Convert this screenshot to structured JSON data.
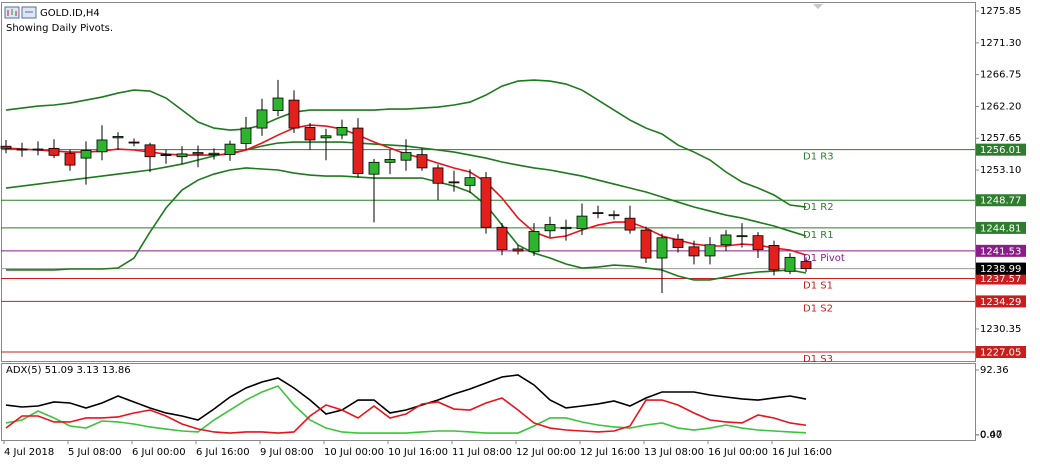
{
  "chart_data": [
    {
      "type": "candlestick",
      "title": "GOLD.ID,H4",
      "subtitle": "Showing Daily Pivots.",
      "categories": [
        "4 Jul 2018",
        null,
        null,
        null,
        "5 Jul 08:00",
        null,
        null,
        null,
        "6 Jul 00:00",
        null,
        null,
        null,
        "6 Jul 16:00",
        null,
        null,
        null,
        "9 Jul 08:00",
        null,
        null,
        null,
        "10 Jul 00:00",
        null,
        null,
        null,
        "10 Jul 16:00",
        null,
        null,
        null,
        "11 Jul 08:00",
        null,
        null,
        null,
        "12 Jul 00:00",
        null,
        null,
        null,
        "12 Jul 16:00",
        null,
        null,
        null,
        "13 Jul 08:00",
        null,
        null,
        null,
        "16 Jul 00:00",
        null,
        null,
        null,
        "16 Jul 16:00",
        null,
        null
      ],
      "open": [
        1256.5,
        1256.1,
        1256.0,
        1256.2,
        1255.5,
        1254.8,
        1255.7,
        1257.7,
        1257.1,
        1256.7,
        1255.3,
        1255.0,
        1255.4,
        1255.3,
        1255.3,
        1256.9,
        1259.1,
        1261.6,
        1263.1,
        1259.2,
        1257.7,
        1258.1,
        1259.1,
        1252.5,
        1254.2,
        1254.5,
        1255.3,
        1253.4,
        1251.4,
        1250.9,
        1252.0,
        1244.9,
        1241.8,
        1241.4,
        1244.4,
        1244.7,
        1244.7,
        1246.9,
        1246.6,
        1246.2,
        1244.5,
        1240.5,
        1243.2,
        1242.1,
        1240.8,
        1242.4,
        1243.6,
        1243.7,
        1242.3,
        1238.6,
        1240.0
      ],
      "high": [
        1257.4,
        1257.0,
        1257.2,
        1257.5,
        1256.0,
        1257.2,
        1259.5,
        1258.5,
        1257.6,
        1257.0,
        1256.0,
        1256.5,
        1256.6,
        1256.2,
        1257.3,
        1260.7,
        1263.3,
        1266.0,
        1264.5,
        1259.8,
        1259.0,
        1260.3,
        1260.5,
        1254.7,
        1256.0,
        1257.5,
        1256.2,
        1253.9,
        1253.0,
        1253.2,
        1252.8,
        1245.5,
        1242.4,
        1245.5,
        1246.4,
        1246.0,
        1248.3,
        1248.0,
        1247.3,
        1248.0,
        1245.0,
        1244.0,
        1243.9,
        1243.0,
        1243.5,
        1244.5,
        1245.5,
        1244.2,
        1243.0,
        1241.2,
        1240.6
      ],
      "low": [
        1255.5,
        1255.0,
        1255.2,
        1254.8,
        1253.0,
        1251.0,
        1254.5,
        1256.0,
        1256.5,
        1252.8,
        1254.0,
        1254.0,
        1253.5,
        1254.6,
        1254.4,
        1256.0,
        1258.0,
        1260.8,
        1258.4,
        1256.0,
        1254.5,
        1257.5,
        1252.0,
        1245.6,
        1252.5,
        1253.0,
        1253.0,
        1248.8,
        1250.0,
        1249.8,
        1244.0,
        1240.9,
        1241.0,
        1240.8,
        1243.5,
        1243.0,
        1243.8,
        1246.2,
        1246.0,
        1244.0,
        1239.8,
        1235.5,
        1241.3,
        1239.6,
        1239.6,
        1241.5,
        1242.0,
        1240.5,
        1238.0,
        1238.2,
        1238.5
      ],
      "close": [
        1256.2,
        1256.0,
        1256.1,
        1255.2,
        1253.8,
        1255.9,
        1257.4,
        1257.9,
        1257.0,
        1255.0,
        1255.2,
        1255.4,
        1255.6,
        1255.5,
        1256.8,
        1259.1,
        1261.7,
        1263.4,
        1259.1,
        1257.4,
        1258.0,
        1259.2,
        1252.6,
        1254.2,
        1254.6,
        1255.6,
        1253.4,
        1251.2,
        1251.3,
        1252.0,
        1244.9,
        1241.7,
        1241.5,
        1244.3,
        1245.3,
        1244.9,
        1246.5,
        1247.0,
        1246.7,
        1244.5,
        1240.5,
        1243.4,
        1242.0,
        1240.8,
        1242.4,
        1243.8,
        1243.7,
        1241.7,
        1238.8,
        1240.6,
        1238.99
      ],
      "up_color": "#2db52d",
      "down_color": "#e3201c",
      "series": [
        {
          "color": "#1f7a1f",
          "values": [
            1261.68,
            1261.97,
            1262.25,
            1262.4,
            1262.68,
            1263.11,
            1263.54,
            1264.11,
            1264.54,
            1264.4,
            1263.4,
            1261.68,
            1259.96,
            1259.1,
            1258.82,
            1258.96,
            1259.53,
            1260.53,
            1261.39,
            1261.68,
            1261.68,
            1261.68,
            1261.68,
            1261.68,
            1261.82,
            1261.82,
            1261.97,
            1262.11,
            1262.4,
            1262.82,
            1263.83,
            1265.11,
            1265.83,
            1265.97,
            1265.83,
            1265.4,
            1264.54,
            1263.11,
            1261.68,
            1260.25,
            1259.1,
            1258.25,
            1256.67,
            1255.67,
            1254.53,
            1252.81,
            1251.38,
            1250.52,
            1249.52,
            1248.09,
            1247.8
          ]
        },
        {
          "color": "#1f7a1f",
          "values": [
            1250.52,
            1250.8,
            1251.09,
            1251.38,
            1251.66,
            1251.95,
            1252.23,
            1252.52,
            1252.81,
            1253.1,
            1253.52,
            1253.95,
            1254.53,
            1255.1,
            1255.53,
            1255.96,
            1256.53,
            1256.96,
            1257.1,
            1257.1,
            1257.1,
            1257.1,
            1256.96,
            1256.81,
            1256.67,
            1256.53,
            1256.24,
            1255.96,
            1255.67,
            1255.24,
            1254.81,
            1254.24,
            1253.81,
            1253.39,
            1253.1,
            1252.66,
            1252.23,
            1251.66,
            1251.09,
            1250.52,
            1249.95,
            1249.23,
            1248.51,
            1247.8,
            1247.22,
            1246.65,
            1246.22,
            1245.65,
            1245.08,
            1244.36,
            1243.65
          ]
        },
        {
          "color": "#1f7a1f",
          "values": [
            1238.79,
            1238.79,
            1238.79,
            1238.79,
            1238.93,
            1238.93,
            1238.93,
            1239.07,
            1240.5,
            1244.22,
            1247.66,
            1250.23,
            1251.66,
            1252.52,
            1253.1,
            1253.39,
            1253.24,
            1253.1,
            1252.66,
            1252.38,
            1252.23,
            1252.23,
            1252.09,
            1251.95,
            1251.95,
            1251.95,
            1251.95,
            1251.38,
            1250.8,
            1249.95,
            1248.09,
            1245.22,
            1242.36,
            1241.21,
            1240.5,
            1239.64,
            1239.07,
            1239.21,
            1239.5,
            1239.35,
            1239.07,
            1238.79,
            1237.93,
            1237.36,
            1237.36,
            1237.79,
            1238.22,
            1238.5,
            1238.64,
            1238.79,
            1238.36
          ]
        },
        {
          "color": "#e8141c",
          "values": [
            1256.24,
            1256.1,
            1255.96,
            1255.81,
            1255.67,
            1255.67,
            1255.81,
            1256.1,
            1255.96,
            1255.67,
            1255.38,
            1255.24,
            1255.24,
            1255.24,
            1255.38,
            1255.96,
            1256.96,
            1258.1,
            1259.1,
            1259.53,
            1259.39,
            1258.96,
            1258.1,
            1257.1,
            1256.24,
            1255.38,
            1254.81,
            1254.09,
            1253.39,
            1252.81,
            1251.38,
            1249.09,
            1246.22,
            1244.22,
            1243.36,
            1243.65,
            1244.51,
            1245.22,
            1245.65,
            1245.65,
            1244.79,
            1243.65,
            1243.07,
            1242.5,
            1242.22,
            1242.22,
            1242.5,
            1242.36,
            1241.93,
            1241.65,
            1240.93
          ]
        }
      ],
      "levels": [
        {
          "label": "D1 R3",
          "value": 1256.01,
          "color": "#2e7d2e"
        },
        {
          "label": "D1 R2",
          "value": 1248.77,
          "color": "#2e7d2e"
        },
        {
          "label": "D1 R1",
          "value": 1244.81,
          "color": "#2e7d2e"
        },
        {
          "label": "D1 Pivot",
          "value": 1241.53,
          "color": "#8b1c8b"
        },
        {
          "label": "D1 S1",
          "value": 1237.57,
          "color": "#c81e1e"
        },
        {
          "label": "D1 S2",
          "value": 1234.29,
          "color": "#c81e1e"
        },
        {
          "label": "D1 S3",
          "value": 1227.05,
          "color": "#c81e1e"
        }
      ],
      "last_price": 1238.99,
      "ylim": [
        1225.62,
        1277.0
      ],
      "yticks": [
        1275.85,
        {
          "value": 1271.3,
          "label": "1271.30"
        },
        1266.75,
        {
          "value": 1262.2,
          "label": "1262.20"
        },
        1257.65,
        {
          "value": 1253.1,
          "label": "1253.10"
        },
        1230.35
      ]
    },
    {
      "type": "line",
      "title": "ADX(5) 51.09 3.13 13.86",
      "series": [
        {
          "color": "#000000",
          "values": [
            42.6,
            39.8,
            41.2,
            46.9,
            45.5,
            38.4,
            45.5,
            55.4,
            46.9,
            38.4,
            31.3,
            27.0,
            21.3,
            36.9,
            54.0,
            66.8,
            75.3,
            81.0,
            66.8,
            49.7,
            29.8,
            35.5,
            49.7,
            49.7,
            31.3,
            35.5,
            42.6,
            49.7,
            58.3,
            65.4,
            73.9,
            82.4,
            85.3,
            71.1,
            49.7,
            38.4,
            41.2,
            44.1,
            48.3,
            41.2,
            52.6,
            61.1,
            61.1,
            61.1,
            56.8,
            54.0,
            51.2,
            49.7,
            52.6,
            55.4,
            51.09
          ]
        },
        {
          "color": "#3cc43c",
          "values": [
            17.1,
            21.3,
            34.1,
            24.2,
            12.8,
            9.9,
            19.9,
            18.5,
            15.6,
            11.4,
            8.5,
            5.7,
            4.3,
            21.3,
            35.5,
            49.7,
            61.1,
            69.6,
            42.6,
            21.3,
            9.9,
            4.3,
            2.8,
            2.8,
            2.8,
            2.8,
            4.3,
            5.7,
            5.7,
            4.3,
            2.8,
            2.8,
            2.8,
            12.8,
            24.2,
            24.2,
            18.5,
            14.2,
            11.4,
            9.9,
            14.2,
            17.1,
            9.9,
            7.1,
            9.9,
            14.2,
            9.9,
            7.1,
            5.7,
            4.3,
            3.13
          ]
        },
        {
          "color": "#e8141c",
          "values": [
            9.9,
            27.0,
            27.0,
            18.5,
            18.5,
            24.2,
            24.2,
            25.6,
            31.3,
            35.5,
            27.0,
            15.6,
            8.5,
            4.3,
            2.8,
            4.3,
            4.3,
            2.8,
            4.3,
            27.0,
            42.6,
            35.5,
            24.2,
            41.2,
            24.2,
            29.8,
            44.1,
            46.9,
            36.9,
            35.5,
            45.5,
            52.6,
            35.5,
            17.1,
            9.9,
            7.1,
            5.7,
            4.3,
            5.7,
            12.8,
            49.7,
            49.7,
            42.6,
            31.3,
            21.3,
            18.5,
            17.1,
            28.4,
            24.2,
            17.1,
            13.86
          ]
        }
      ],
      "ylim": [
        -7.1,
        102.3
      ],
      "yticks": [
        92.36,
        {
          "value": 0,
          "label": "0.00"
        },
        {
          "value": 0.47,
          "label": "0.47"
        }
      ]
    }
  ]
}
